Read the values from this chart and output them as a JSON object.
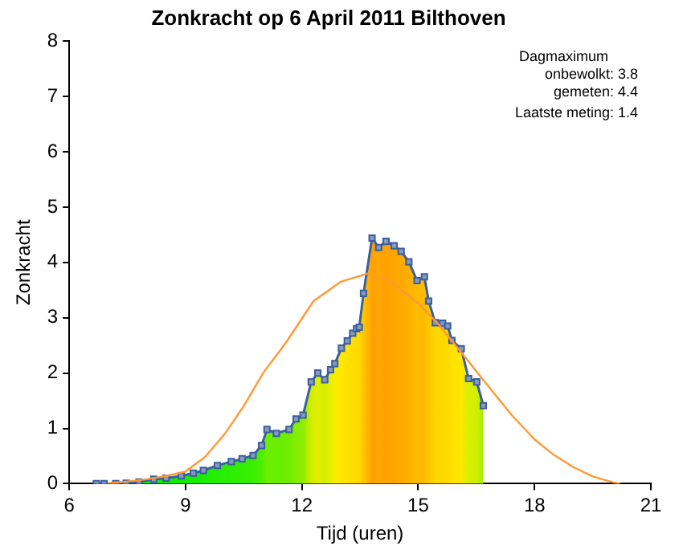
{
  "chart_data": {
    "type": "area",
    "title": "Zonkracht op 6 April 2011 Bilthoven",
    "xlabel": "Tijd (uren)",
    "ylabel": "Zonkracht",
    "xlim": [
      6,
      21
    ],
    "xticks": [
      6,
      9,
      12,
      15,
      18,
      21
    ],
    "ylim": [
      0,
      8
    ],
    "yticks": [
      0,
      1,
      2,
      3,
      4,
      5,
      6,
      7,
      8
    ],
    "grid": false,
    "legend": false,
    "marker": "square",
    "annotations": [
      "Dagmaximum",
      "onbewolkt: 3.8",
      "gemeten: 4.4",
      "Laatste meting: 1.4"
    ],
    "series": [
      {
        "color": "#3a5fa0",
        "x": [
          6.7,
          6.9,
          7.2,
          7.47,
          7.8,
          8.18,
          8.5,
          8.89,
          9.2,
          9.46,
          9.82,
          10.18,
          10.46,
          10.74,
          10.96,
          11.1,
          11.34,
          11.67,
          11.85,
          12.03,
          12.24,
          12.41,
          12.59,
          12.74,
          12.85,
          13.02,
          13.17,
          13.31,
          13.41,
          13.48,
          13.59,
          13.81,
          13.98,
          14.17,
          14.38,
          14.56,
          14.76,
          14.97,
          15.16,
          15.27,
          15.44,
          15.63,
          15.76,
          15.87,
          16.11,
          16.3,
          16.51,
          16.68
        ],
        "values": [
          0,
          0,
          0,
          0.01,
          0.03,
          0.08,
          0.1,
          0.14,
          0.19,
          0.24,
          0.33,
          0.4,
          0.45,
          0.51,
          0.69,
          0.98,
          0.91,
          0.98,
          1.17,
          1.24,
          1.84,
          2.0,
          1.88,
          2.06,
          2.17,
          2.45,
          2.58,
          2.72,
          2.8,
          2.83,
          3.44,
          4.44,
          4.27,
          4.38,
          4.3,
          4.2,
          4.01,
          3.67,
          3.74,
          3.3,
          2.91,
          2.9,
          2.85,
          2.59,
          2.44,
          1.9,
          1.84,
          1.41
        ]
      },
      {
        "type": "line",
        "color": "#ff9933",
        "marker": "none",
        "x": [
          7,
          7.5,
          8,
          8.5,
          9,
          9.5,
          10,
          10.5,
          11,
          11.6,
          12.3,
          13,
          13.7,
          14.3,
          15,
          15.5,
          16,
          16.8,
          17.4,
          18,
          18.5,
          19,
          19.5,
          20,
          20.2
        ],
        "values": [
          0.01,
          0.04,
          0.08,
          0.14,
          0.22,
          0.48,
          0.89,
          1.4,
          2.0,
          2.56,
          3.3,
          3.65,
          3.8,
          3.65,
          3.26,
          2.9,
          2.47,
          1.77,
          1.25,
          0.8,
          0.52,
          0.3,
          0.13,
          0.03,
          0
        ]
      }
    ]
  }
}
